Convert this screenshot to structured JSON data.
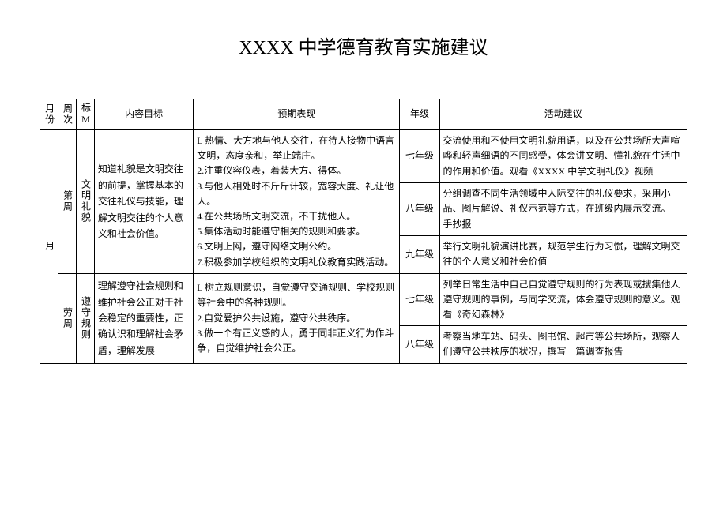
{
  "title": "XXXX 中学德育教育实施建议",
  "headers": {
    "month": "月份",
    "week": "周次",
    "flag": "标M",
    "goal": "内容目标",
    "expected": "预期表现",
    "grade": "年级",
    "activity": "活动建议"
  },
  "col1_month": "月",
  "block1": {
    "week": "第周",
    "flag": "文明礼貌",
    "goal": "知道礼貌是文明交往的前提，掌握基本的交往礼仪与技能，理解文明交往的个人意义和社会价值。",
    "expected": "L 热情、大方地与他人交往，在待人接物中语言文明，态度亲和，举止端庄。\n2.注重仪容仪表，着装大方、得体。\n3.与他人相处时不斤斤计较，宽容大度、礼让他人。\n4.在公共场所文明交流，不干扰他人。\n5.集体活动时能遵守相关的规则和要求。\n6.文明上网，遵守网络文明公约。\n7.积极参加学校组织的文明礼仪教育实践活动。",
    "rows": [
      {
        "grade": "七年级",
        "activity": "交流使用和不使用文明礼貌用语，以及在公共场所大声喧哗和轻声细语的不同感受，体会讲文明、懂礼貌在生活中的作用和价值。观看《XXXX 中学文明礼仪》视频"
      },
      {
        "grade": "八年级",
        "activity": "分组调查不同生活领域中人际交往的礼仪要求，采用小品、图片解说、礼仪示范等方式，在班级内展示交流。\n手抄报"
      },
      {
        "grade": "九年级",
        "activity": "举行文明礼貌演讲比赛，规范学生行为习惯，理解文明交往的个人意义和社会价值"
      }
    ]
  },
  "block2": {
    "week": "劳周",
    "flag": "遵守规则",
    "goal": "理解遵守社会规则和维护社会公正对于社会稳定的重要性，正确认识和理解社会矛盾，理解发展",
    "expected": "L 树立规则意识，自觉遵守交通规则、学校规则等社会中的各种规则。\n2.自觉爱护公共设施，遵守公共秩序。\n3.做一个有正义感的人，勇于同非正义行为作斗争，自觉维护社会公正。",
    "rows": [
      {
        "grade": "七年级",
        "activity": "列举日常生活中自己自觉遵守规则的行为表现或搜集他人遵守规则的事例，与同学交流，体会遵守规则的意义。观看《奇幻森林》"
      },
      {
        "grade": "八年级",
        "activity": "考察当地车站、码头、图书馆、超市等公共场所，观察人们遵守公共秩序的状况，撰写一篇调查报告"
      }
    ]
  }
}
